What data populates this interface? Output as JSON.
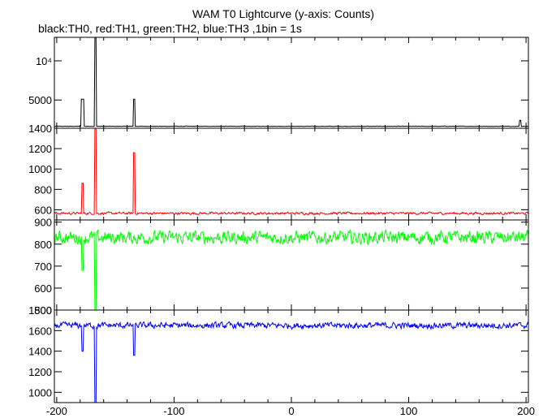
{
  "chart_data": {
    "type": "line",
    "title": "WAM T0 Lightcurve (y-axis: Counts)",
    "subtitle": "black:TH0, red:TH1, green:TH2, blue:TH3 ,1bin = 1s",
    "x_ticks": [
      "-200",
      "-100",
      "0",
      "100",
      "200"
    ],
    "x_tick_values": [
      -200,
      -100,
      0,
      100,
      200
    ],
    "xlim": [
      -202,
      202
    ],
    "panels": [
      {
        "series": "TH0",
        "color": "#000000",
        "ylim": [
          1400,
          13000
        ],
        "y_ticks": [
          {
            "label": "10⁴",
            "value": 10000
          },
          {
            "label": "5000",
            "value": 5000
          },
          {
            "label": "1400",
            "value": 1400
          }
        ],
        "baseline": 1650,
        "noise": 40,
        "spikes": [
          {
            "t": -178,
            "v": 5100,
            "width": 2
          },
          {
            "t": -167,
            "v": 13000,
            "width": 1
          },
          {
            "t": -134,
            "v": 5100,
            "width": 1
          },
          {
            "t": 195,
            "v": 2400,
            "width": 1
          }
        ]
      },
      {
        "series": "TH1",
        "color": "#ff0000",
        "ylim": [
          500,
          1400
        ],
        "y_ticks": [
          {
            "label": "1200",
            "value": 1200
          },
          {
            "label": "1000",
            "value": 1000
          },
          {
            "label": "800",
            "value": 800
          },
          {
            "label": "600",
            "value": 600
          }
        ],
        "baseline": 565,
        "noise": 18,
        "spikes": [
          {
            "t": -178,
            "v": 860,
            "width": 1
          },
          {
            "t": -167,
            "v": 1390,
            "width": 1
          },
          {
            "t": -134,
            "v": 1160,
            "width": 1
          }
        ]
      },
      {
        "series": "TH2",
        "color": "#00ff00",
        "ylim": [
          500,
          910
        ],
        "y_ticks": [
          {
            "label": "900",
            "value": 900
          },
          {
            "label": "800",
            "value": 800
          },
          {
            "label": "700",
            "value": 700
          },
          {
            "label": "600",
            "value": 600
          },
          {
            "label": "500",
            "value": 500
          }
        ],
        "baseline": 830,
        "noise": 45,
        "spikes": [
          {
            "t": -178,
            "v": 680,
            "width": 1
          },
          {
            "t": -167,
            "v": 500,
            "width": 1
          }
        ]
      },
      {
        "series": "TH3",
        "color": "#0000ff",
        "ylim": [
          900,
          1800
        ],
        "y_ticks": [
          {
            "label": "1800",
            "value": 1800
          },
          {
            "label": "1600",
            "value": 1600
          },
          {
            "label": "1400",
            "value": 1400
          },
          {
            "label": "1200",
            "value": 1200
          },
          {
            "label": "1000",
            "value": 1000
          }
        ],
        "baseline": 1650,
        "noise": 45,
        "spikes": [
          {
            "t": -178,
            "v": 1400,
            "width": 1
          },
          {
            "t": -167,
            "v": 900,
            "width": 1
          },
          {
            "t": -134,
            "v": 1360,
            "width": 1
          }
        ]
      }
    ]
  }
}
